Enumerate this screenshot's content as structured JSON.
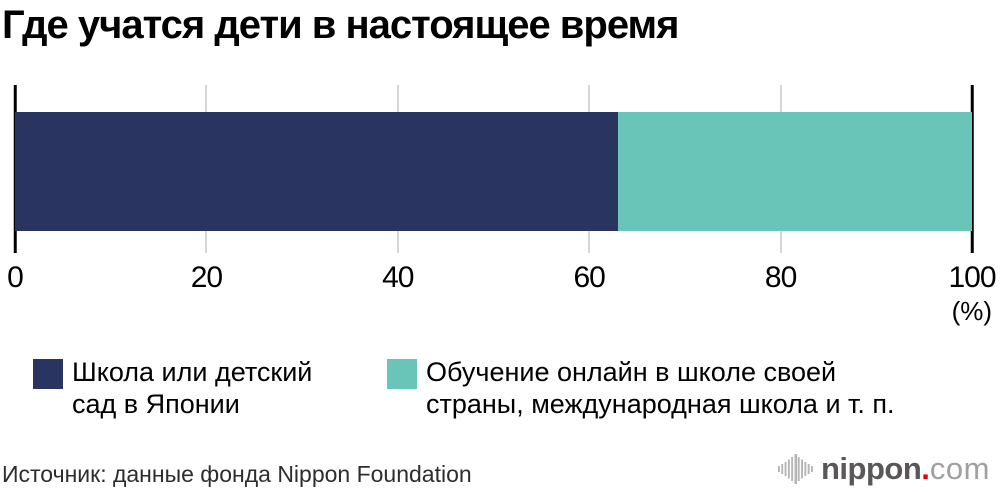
{
  "title": "Где учатся дети в настоящее время",
  "chart_data": {
    "type": "bar",
    "orientation": "horizontal",
    "stacked": true,
    "title": "Где учатся дети в настоящее время",
    "categories": [
      "Где учатся дети в настоящее время"
    ],
    "series": [
      {
        "name": "Школа или детский сад в Японии",
        "value": 63,
        "color": "#293560"
      },
      {
        "name": "Обучение онлайн в школе своей страны, международная школа и т. п.",
        "value": 37,
        "color": "#68c5b8"
      }
    ],
    "xlim": [
      0,
      100
    ],
    "ticks": [
      0,
      20,
      40,
      60,
      80,
      100
    ],
    "unit": "(%)",
    "grid": true,
    "legend_position": "bottom"
  },
  "axis": {
    "unit": "(%)"
  },
  "legend": {
    "items": [
      {
        "label": "Школа или детский\nсад в Японии",
        "color": "#293560"
      },
      {
        "label": "Обучение онлайн в школе своей\nстраны, международная школа и т. п.",
        "color": "#68c5b8"
      }
    ]
  },
  "source": "Источник: данные фонда Nippon Foundation",
  "logo": {
    "brand": "nippon",
    "dot": ".",
    "tld": "com",
    "brand_color": "#595757",
    "dot_color": "#e60012",
    "tld_color": "#9fa0a0",
    "icon_color": "#b5b5b5"
  }
}
